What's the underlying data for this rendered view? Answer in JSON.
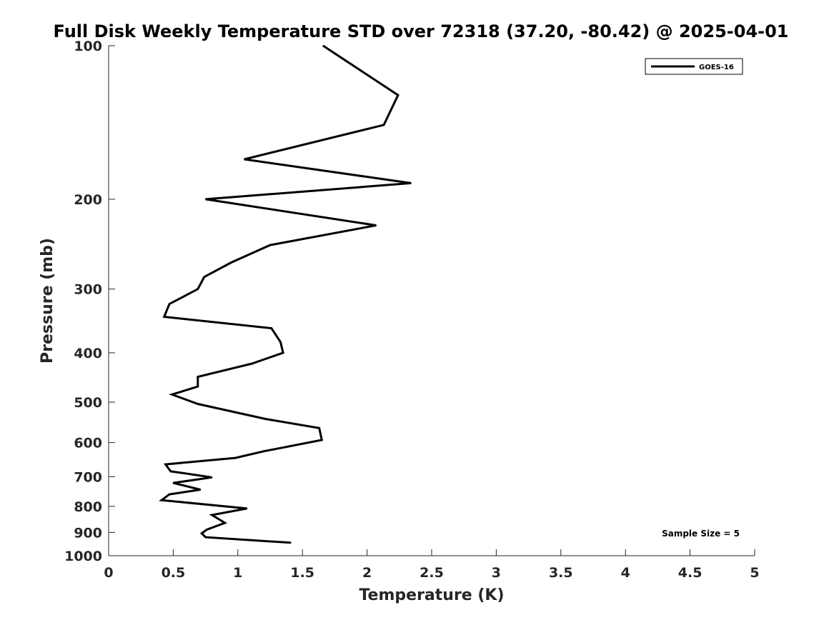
{
  "chart_data": {
    "type": "line",
    "title": "Full Disk Weekly Temperature STD over 72318 (37.20, -80.42) @ 2025-04-01",
    "xlabel": "Temperature (K)",
    "ylabel": "Pressure (mb)",
    "xlim": [
      0,
      5
    ],
    "ylim": [
      1000,
      100
    ],
    "y_scale": "log",
    "y_reversed": true,
    "x_ticks": [
      "0",
      "0.5",
      "1",
      "1.5",
      "2",
      "2.5",
      "3",
      "3.5",
      "4",
      "4.5",
      "5"
    ],
    "y_ticks": [
      "100",
      "200",
      "300",
      "400",
      "500",
      "600",
      "700",
      "800",
      "900",
      "1000"
    ],
    "grid": false,
    "legend_position": "top-right",
    "annotation": "Sample Size = 5",
    "series": [
      {
        "name": "GOES-16",
        "color": "#000000",
        "points": [
          {
            "x": 1.66,
            "p": 100
          },
          {
            "x": 2.24,
            "p": 125
          },
          {
            "x": 2.13,
            "p": 143
          },
          {
            "x": 1.05,
            "p": 167
          },
          {
            "x": 2.34,
            "p": 186
          },
          {
            "x": 0.75,
            "p": 200
          },
          {
            "x": 2.07,
            "p": 225
          },
          {
            "x": 1.25,
            "p": 246
          },
          {
            "x": 0.95,
            "p": 266
          },
          {
            "x": 0.74,
            "p": 284
          },
          {
            "x": 0.69,
            "p": 300
          },
          {
            "x": 0.47,
            "p": 321
          },
          {
            "x": 0.43,
            "p": 340
          },
          {
            "x": 1.26,
            "p": 358
          },
          {
            "x": 1.33,
            "p": 381
          },
          {
            "x": 1.35,
            "p": 400
          },
          {
            "x": 1.11,
            "p": 420
          },
          {
            "x": 0.69,
            "p": 446
          },
          {
            "x": 0.69,
            "p": 466
          },
          {
            "x": 0.49,
            "p": 483
          },
          {
            "x": 0.69,
            "p": 504
          },
          {
            "x": 1.21,
            "p": 539
          },
          {
            "x": 1.63,
            "p": 562
          },
          {
            "x": 1.65,
            "p": 593
          },
          {
            "x": 1.2,
            "p": 624
          },
          {
            "x": 0.98,
            "p": 643
          },
          {
            "x": 0.44,
            "p": 662
          },
          {
            "x": 0.48,
            "p": 683
          },
          {
            "x": 0.8,
            "p": 702
          },
          {
            "x": 0.5,
            "p": 720
          },
          {
            "x": 0.71,
            "p": 742
          },
          {
            "x": 0.47,
            "p": 758
          },
          {
            "x": 0.41,
            "p": 778
          },
          {
            "x": 1.07,
            "p": 808
          },
          {
            "x": 0.8,
            "p": 832
          },
          {
            "x": 0.9,
            "p": 862
          },
          {
            "x": 0.76,
            "p": 889
          },
          {
            "x": 0.72,
            "p": 904
          },
          {
            "x": 0.75,
            "p": 920
          },
          {
            "x": 1.41,
            "p": 943
          }
        ]
      }
    ]
  }
}
